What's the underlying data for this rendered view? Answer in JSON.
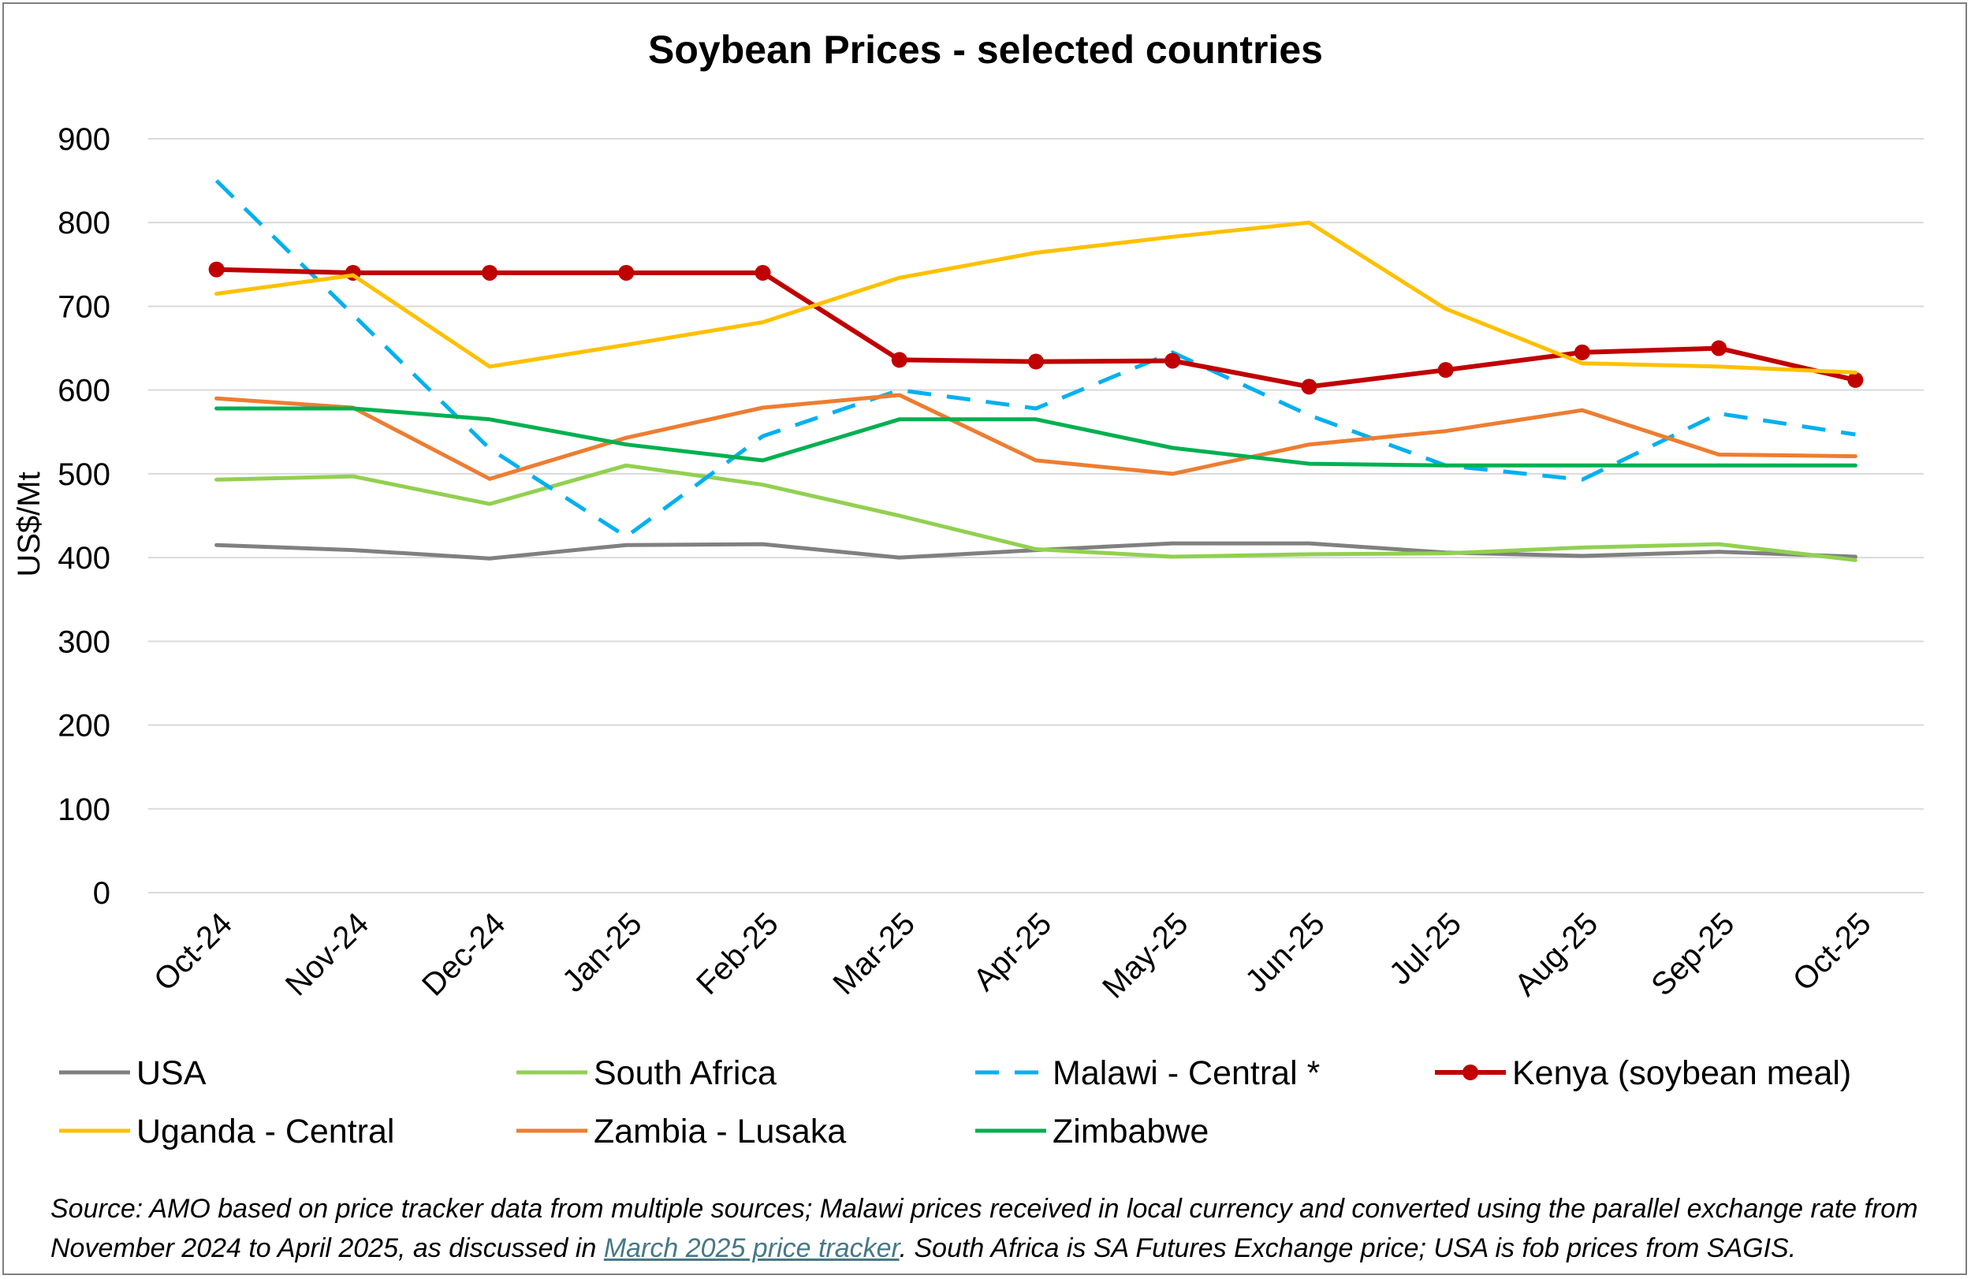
{
  "chart_data": {
    "type": "line",
    "title": "Soybean Prices - selected countries",
    "xlabel": "",
    "ylabel": "US$/Mt",
    "ylim": [
      0,
      900
    ],
    "yticks": [
      0,
      100,
      200,
      300,
      400,
      500,
      600,
      700,
      800,
      900
    ],
    "grid": true,
    "legend_position": "bottom",
    "categories": [
      "Oct-24",
      "Nov-24",
      "Dec-24",
      "Jan-25",
      "Feb-25",
      "Mar-25",
      "Apr-25",
      "May-25",
      "Jun-25",
      "Jul-25",
      "Aug-25",
      "Sep-25",
      "Oct-25"
    ],
    "series": [
      {
        "name": "USA",
        "color": "#808080",
        "dash": "solid",
        "marker": "none",
        "values": [
          415,
          409,
          399,
          415,
          416,
          400,
          409,
          417,
          417,
          406,
          402,
          407,
          401
        ]
      },
      {
        "name": "South Africa",
        "color": "#92d050",
        "dash": "solid",
        "marker": "none",
        "values": [
          493,
          497,
          464,
          510,
          487,
          450,
          410,
          401,
          404,
          405,
          412,
          416,
          397
        ]
      },
      {
        "name": "Malawi - Central *",
        "color": "#00b0f0",
        "dash": "dashed",
        "marker": "none",
        "values": [
          850,
          690,
          530,
          425,
          545,
          600,
          578,
          645,
          570,
          510,
          493,
          572,
          547
        ]
      },
      {
        "name": "Kenya (soybean meal)",
        "color": "#c00000",
        "dash": "solid",
        "marker": "circle",
        "values": [
          744,
          740,
          740,
          740,
          740,
          636,
          634,
          635,
          604,
          624,
          645,
          650,
          612
        ]
      },
      {
        "name": "Uganda - Central",
        "color": "#ffc000",
        "dash": "solid",
        "marker": "none",
        "values": [
          715,
          737,
          628,
          654,
          681,
          734,
          764,
          783,
          800,
          697,
          632,
          628,
          621
        ]
      },
      {
        "name": "Zambia - Lusaka",
        "color": "#ed7d31",
        "dash": "solid",
        "marker": "none",
        "values": [
          590,
          579,
          494,
          543,
          579,
          594,
          516,
          500,
          535,
          551,
          576,
          523,
          521
        ]
      },
      {
        "name": "Zimbabwe",
        "color": "#00b050",
        "dash": "solid",
        "marker": "none",
        "values": [
          578,
          578,
          565,
          535,
          516,
          565,
          565,
          531,
          512,
          510,
          510,
          510,
          510
        ]
      }
    ]
  },
  "source": {
    "prefix": "Source: AMO based on price tracker data from multiple sources; Malawi prices received in local currency and converted using the parallel exchange rate from November 2024 to April 2025, as discussed in ",
    "link_text": "March 2025 price tracker",
    "suffix": ". South Africa is SA Futures Exchange price; USA is fob prices from SAGIS."
  }
}
